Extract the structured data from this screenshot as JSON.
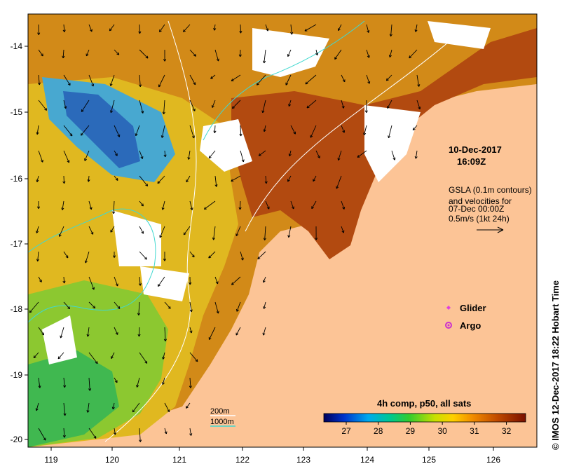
{
  "map": {
    "timestamp_date": "10-Dec-2017",
    "timestamp_time": "16:09Z",
    "info_lines": [
      "GSLA (0.1m contours)",
      "and velocities for",
      "07-Dec 00:00Z",
      "0.5m/s (1kt 24h)"
    ],
    "x_ticks": [
      "119",
      "120",
      "121",
      "122",
      "123",
      "124",
      "125",
      "126"
    ],
    "y_ticks": [
      "-14",
      "-15",
      "-16",
      "-17",
      "-18",
      "-19",
      "-20"
    ],
    "legend": {
      "glider_label": "Glider",
      "argo_label": "Argo",
      "contour_200": "200m",
      "contour_1000": "1000m"
    },
    "colorbar": {
      "title": "4h comp, p50, all sats",
      "ticks": [
        "27",
        "28",
        "29",
        "30",
        "31",
        "32"
      ],
      "min": 26.3,
      "max": 32.6
    },
    "credit": "© IMOS 12-Dec-2017 18:22 Hobart Time",
    "colors": {
      "land": "#fcc496",
      "no_data": "#ffffff",
      "glider": "#e040e0",
      "argo": "#cc33cc",
      "contour_200": "#ffffff",
      "contour_1000": "#40d8d0"
    }
  }
}
